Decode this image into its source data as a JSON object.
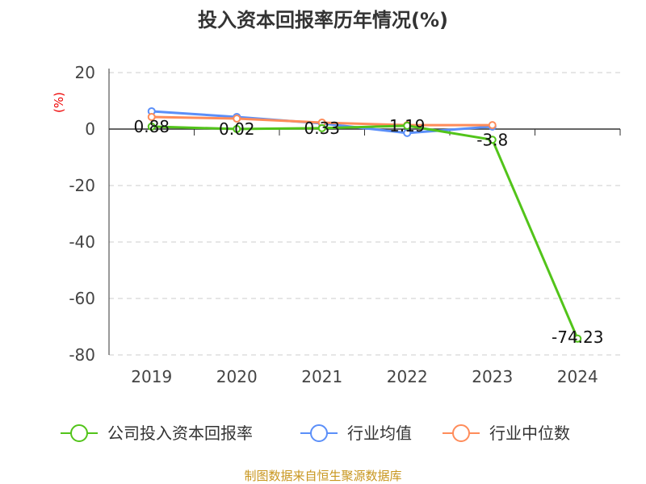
{
  "chart_data": {
    "type": "line",
    "title": "投入资本回报率历年情况(%)",
    "ylabel": "(%)",
    "categories": [
      "2019",
      "2020",
      "2021",
      "2022",
      "2023",
      "2024"
    ],
    "ylim": [
      -80,
      20
    ],
    "yticks": [
      20,
      0,
      -20,
      -40,
      -60,
      -80
    ],
    "grid": true,
    "legend_position": "bottom",
    "series": [
      {
        "name": "公司投入资本回报率",
        "color": "#52c41a",
        "values": [
          0.88,
          0.02,
          0.33,
          1.19,
          -3.8,
          -74.23
        ],
        "labels": [
          "0.88",
          "0.02",
          "0.33",
          "1.19",
          "-3.8",
          "-74.23"
        ]
      },
      {
        "name": "行业均值",
        "color": "#5b8ff9",
        "values": [
          6.3,
          4.3,
          2.0,
          -1.4,
          0.9,
          null
        ]
      },
      {
        "name": "行业中位数",
        "color": "#ff8c5a",
        "values": [
          4.3,
          3.7,
          2.3,
          1.4,
          1.4,
          null
        ]
      }
    ]
  },
  "source": "制图数据来自恒生聚源数据库"
}
